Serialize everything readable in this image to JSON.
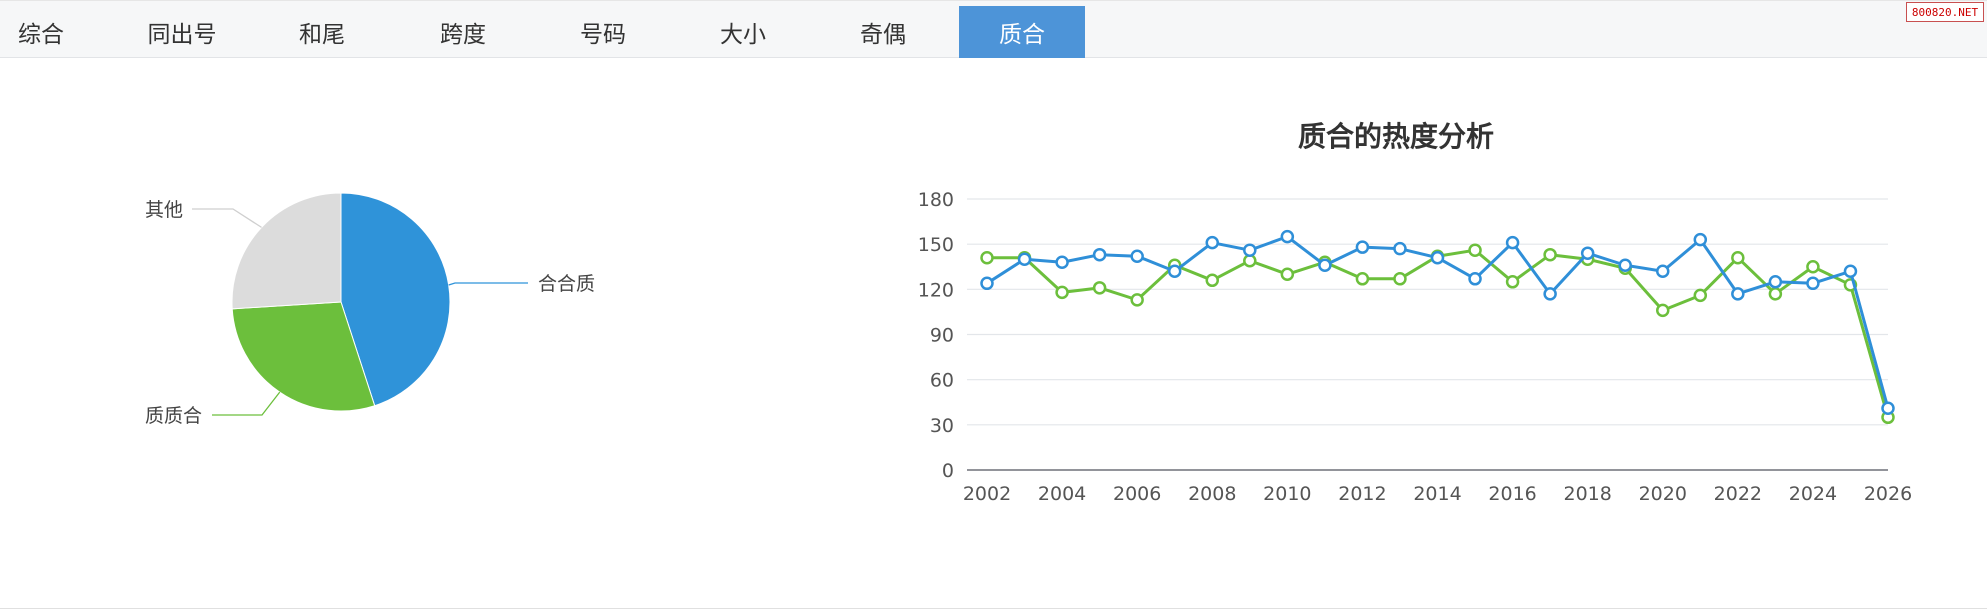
{
  "tabs": [
    {
      "label": "综合"
    },
    {
      "label": "同出号"
    },
    {
      "label": "和尾"
    },
    {
      "label": "跨度"
    },
    {
      "label": "号码"
    },
    {
      "label": "大小"
    },
    {
      "label": "奇偶"
    },
    {
      "label": "质合"
    }
  ],
  "active_tab": 7,
  "watermark": "800820.NET",
  "chart_data": [
    {
      "type": "pie",
      "slices": [
        {
          "name": "合合质",
          "value": 45,
          "color": "#2f93d9"
        },
        {
          "name": "质质合",
          "value": 29,
          "color": "#6cbf3c"
        },
        {
          "name": "其他",
          "value": 26,
          "color": "#dcdcdc"
        }
      ]
    },
    {
      "type": "line",
      "title": "质合的热度分析",
      "x": [
        2002,
        2003,
        2004,
        2005,
        2006,
        2007,
        2008,
        2009,
        2010,
        2011,
        2012,
        2013,
        2014,
        2015,
        2016,
        2017,
        2018,
        2019,
        2020,
        2021,
        2022,
        2023,
        2024,
        2025,
        2026
      ],
      "xticks": [
        2002,
        2004,
        2006,
        2008,
        2010,
        2012,
        2014,
        2016,
        2018,
        2020,
        2022,
        2024,
        2026
      ],
      "ylim": [
        0,
        180
      ],
      "yticks": [
        0,
        30,
        60,
        90,
        120,
        150,
        180
      ],
      "grid": true,
      "series": [
        {
          "color": "#2f8fd8",
          "values": [
            124,
            140,
            138,
            143,
            142,
            132,
            151,
            146,
            155,
            136,
            148,
            147,
            141,
            127,
            151,
            117,
            144,
            136,
            132,
            153,
            117,
            125,
            124,
            132,
            41
          ]
        },
        {
          "color": "#6cbf3c",
          "values": [
            141,
            141,
            118,
            121,
            113,
            136,
            126,
            139,
            130,
            138,
            127,
            127,
            142,
            146,
            125,
            143,
            140,
            134,
            106,
            116,
            141,
            117,
            135,
            123,
            35
          ]
        }
      ]
    }
  ]
}
